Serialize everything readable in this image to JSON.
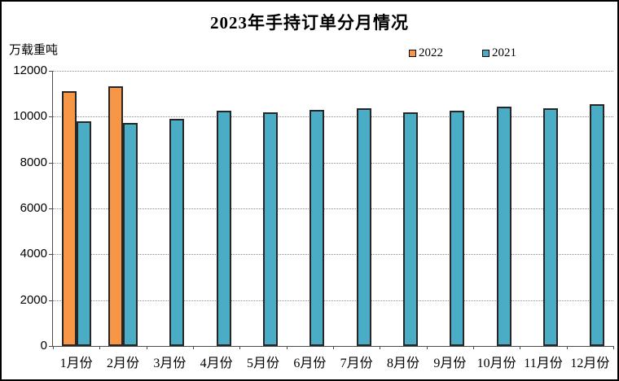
{
  "window": {
    "title": "2023年手持订单分月情况"
  },
  "colors": {
    "series_2022": "#F79646",
    "series_2021": "#4BACC6",
    "bar_border": "#262626",
    "gridline": "#8C8C8C",
    "axis": "#4D4D4D",
    "background": "#FFFFFF",
    "frame_border": "#000000"
  },
  "chart_data": {
    "type": "bar",
    "title": "2023年手持订单分月情况",
    "unit_label": "万载重吨",
    "xlabel": "",
    "ylabel": "万载重吨",
    "categories": [
      "1月份",
      "2月份",
      "3月份",
      "4月份",
      "5月份",
      "6月份",
      "7月份",
      "8月份",
      "9月份",
      "10月份",
      "11月份",
      "12月份"
    ],
    "series": [
      {
        "name": "2022",
        "color": "#F79646",
        "values": [
          11100,
          11340,
          null,
          null,
          null,
          null,
          null,
          null,
          null,
          null,
          null,
          null
        ]
      },
      {
        "name": "2021",
        "color": "#4BACC6",
        "values": [
          9790,
          9720,
          9890,
          10270,
          10190,
          10310,
          10360,
          10190,
          10270,
          10430,
          10350,
          10540
        ]
      }
    ],
    "ylim": [
      0,
      12000
    ],
    "ytick_interval": 2000,
    "yticks": [
      "0",
      "2000",
      "4000",
      "6000",
      "8000",
      "10000",
      "12000"
    ],
    "grid": "horizontal-dotted",
    "legend_position": "top-right"
  }
}
